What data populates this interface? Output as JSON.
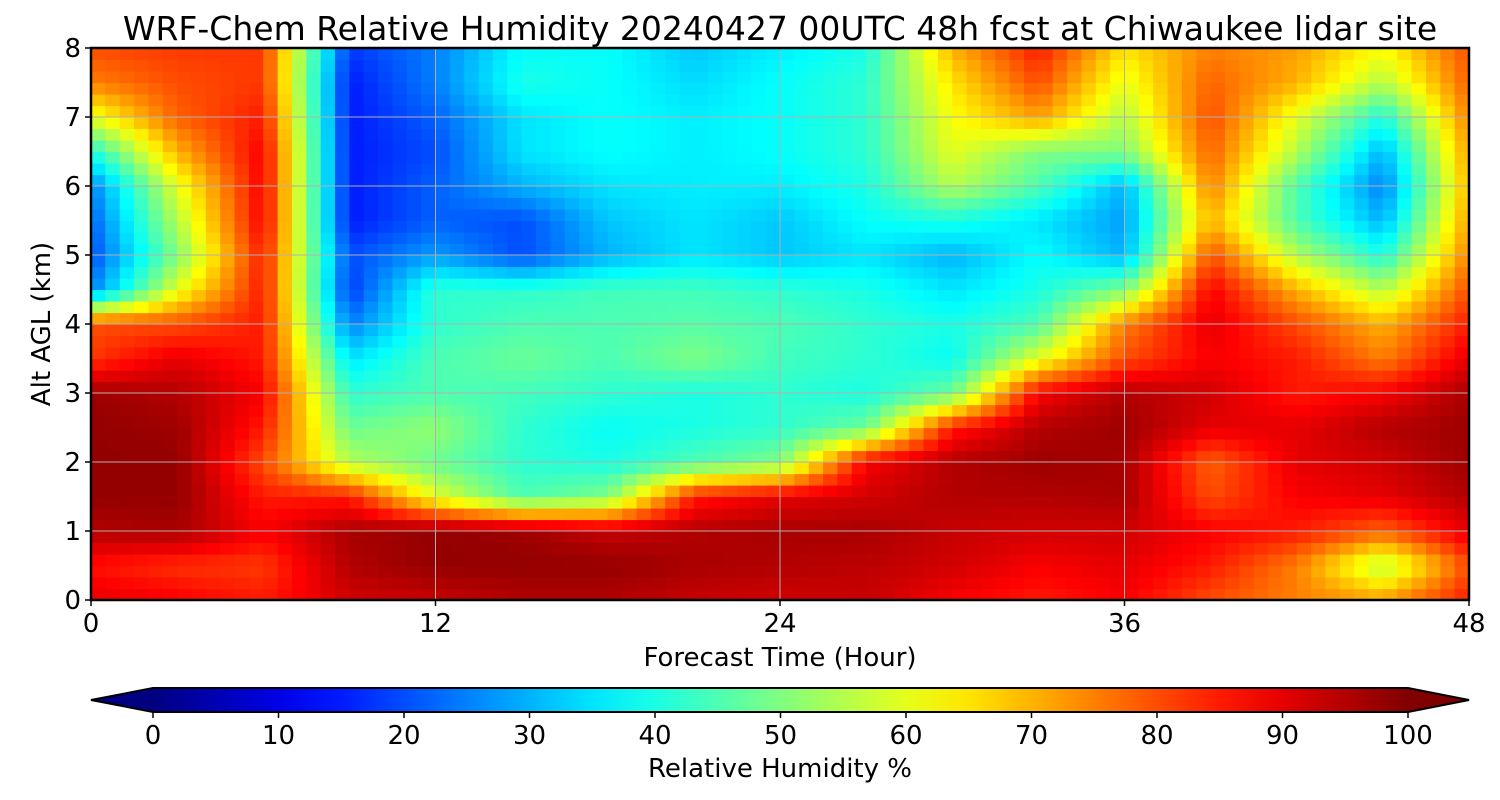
{
  "chart_data": {
    "type": "heatmap",
    "title": "WRF-Chem Relative Humidity 20240427 00UTC 48h fcst at Chiwaukee lidar site",
    "xlabel": "Forecast Time (Hour)",
    "ylabel": "Alt AGL (km)",
    "xlim": [
      0,
      48
    ],
    "ylim": [
      0,
      8
    ],
    "x_ticks": [
      "0",
      "12",
      "24",
      "36",
      "48"
    ],
    "y_ticks": [
      "0",
      "1",
      "2",
      "3",
      "4",
      "5",
      "6",
      "7",
      "8"
    ],
    "grid": true,
    "colormap": "jet",
    "colorbar": {
      "label": "Relative Humidity %",
      "range": [
        0,
        100
      ],
      "ticks": [
        "0",
        "10",
        "20",
        "30",
        "40",
        "50",
        "60",
        "70",
        "80",
        "90",
        "100"
      ],
      "extend": "both",
      "placement": "bottom"
    },
    "x": [
      0,
      3,
      6,
      9,
      12,
      15,
      18,
      21,
      24,
      27,
      30,
      33,
      36,
      39,
      42,
      45,
      48
    ],
    "y": [
      0,
      0.5,
      1,
      1.5,
      2,
      2.5,
      3,
      3.5,
      4,
      4.5,
      5,
      5.5,
      6,
      6.5,
      7,
      7.5,
      8
    ],
    "z": [
      [
        90,
        88,
        85,
        92,
        93,
        95,
        95,
        93,
        92,
        93,
        88,
        85,
        88,
        80,
        75,
        72,
        85
      ],
      [
        86,
        83,
        82,
        95,
        98,
        98,
        98,
        96,
        95,
        94,
        92,
        88,
        90,
        85,
        75,
        55,
        80
      ],
      [
        95,
        96,
        88,
        96,
        98,
        97,
        93,
        95,
        96,
        96,
        93,
        92,
        92,
        88,
        85,
        78,
        90
      ],
      [
        98,
        98,
        85,
        85,
        60,
        45,
        50,
        85,
        90,
        92,
        95,
        95,
        96,
        80,
        88,
        90,
        95
      ],
      [
        98,
        98,
        80,
        55,
        48,
        42,
        40,
        45,
        50,
        88,
        95,
        97,
        96,
        78,
        90,
        92,
        97
      ],
      [
        98,
        97,
        85,
        48,
        52,
        42,
        38,
        40,
        42,
        48,
        85,
        95,
        97,
        90,
        90,
        95,
        97
      ],
      [
        97,
        95,
        88,
        42,
        45,
        44,
        42,
        40,
        42,
        40,
        48,
        88,
        95,
        92,
        85,
        88,
        96
      ],
      [
        82,
        90,
        85,
        35,
        45,
        48,
        45,
        50,
        44,
        42,
        38,
        60,
        80,
        88,
        85,
        75,
        90
      ],
      [
        80,
        80,
        85,
        25,
        42,
        45,
        45,
        46,
        45,
        42,
        40,
        45,
        75,
        90,
        80,
        70,
        85
      ],
      [
        25,
        60,
        85,
        18,
        42,
        42,
        44,
        44,
        42,
        40,
        35,
        40,
        50,
        88,
        70,
        55,
        80
      ],
      [
        20,
        50,
        85,
        20,
        28,
        20,
        30,
        35,
        32,
        35,
        30,
        38,
        30,
        80,
        55,
        40,
        75
      ],
      [
        22,
        55,
        88,
        15,
        22,
        20,
        32,
        35,
        32,
        38,
        40,
        35,
        28,
        70,
        45,
        30,
        72
      ],
      [
        25,
        60,
        88,
        15,
        22,
        30,
        35,
        36,
        36,
        40,
        55,
        45,
        30,
        75,
        45,
        25,
        70
      ],
      [
        40,
        70,
        88,
        15,
        20,
        35,
        38,
        36,
        38,
        42,
        60,
        50,
        50,
        78,
        55,
        30,
        72
      ],
      [
        60,
        78,
        85,
        15,
        22,
        35,
        38,
        36,
        38,
        42,
        62,
        72,
        55,
        80,
        60,
        40,
        75
      ],
      [
        75,
        80,
        82,
        15,
        25,
        40,
        38,
        34,
        38,
        42,
        65,
        80,
        60,
        78,
        70,
        55,
        78
      ],
      [
        80,
        82,
        82,
        18,
        25,
        38,
        38,
        32,
        36,
        40,
        70,
        85,
        65,
        75,
        72,
        62,
        80
      ]
    ]
  }
}
